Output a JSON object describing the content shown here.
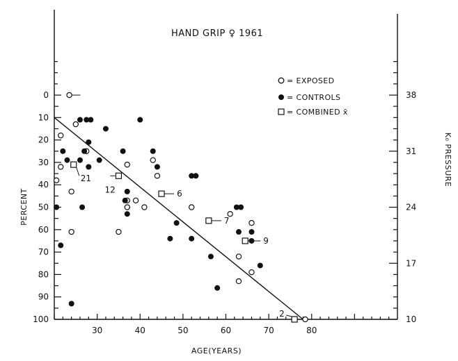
{
  "chart_data": {
    "type": "scatter",
    "title": "HAND GRIP ♀ 1961",
    "xlabel": "AGE(YEARS)",
    "ylabel": "PERCENT",
    "ylabel_right": "K₀ PRESSURE",
    "xlim": [
      20,
      100
    ],
    "ylim": [
      0,
      100
    ],
    "y_inverted": true,
    "x_ticks": [
      30,
      40,
      50,
      60,
      70,
      80
    ],
    "y_ticks": [
      0,
      10,
      20,
      30,
      40,
      50,
      60,
      70,
      80,
      90,
      100
    ],
    "right_ticks": [
      {
        "value": 38,
        "at": 0
      },
      {
        "value": 31,
        "at": 25
      },
      {
        "value": 24,
        "at": 50
      },
      {
        "value": 17,
        "at": 75
      },
      {
        "value": 10,
        "at": 100
      }
    ],
    "grid": false,
    "legend_position": "top-right",
    "series": [
      {
        "name": "EXPOSED",
        "marker": "open-circle",
        "points": [
          [
            23.5,
            0
          ],
          [
            21.5,
            18
          ],
          [
            21.5,
            32
          ],
          [
            20.5,
            38
          ],
          [
            24,
            43
          ],
          [
            24,
            61
          ],
          [
            25,
            13
          ],
          [
            27.5,
            25
          ],
          [
            37,
            31
          ],
          [
            37,
            47
          ],
          [
            37,
            50
          ],
          [
            39,
            47
          ],
          [
            41,
            50
          ],
          [
            43,
            29
          ],
          [
            44,
            36
          ],
          [
            35,
            61
          ],
          [
            52,
            50
          ],
          [
            61,
            53
          ],
          [
            63,
            72
          ],
          [
            63,
            83
          ],
          [
            66,
            57
          ],
          [
            66,
            79
          ],
          [
            78.5,
            100
          ]
        ]
      },
      {
        "name": "CONTROLS",
        "marker": "filled-circle",
        "points": [
          [
            20.5,
            50
          ],
          [
            22,
            25
          ],
          [
            21.5,
            67
          ],
          [
            23,
            29
          ],
          [
            24,
            93
          ],
          [
            26,
            11
          ],
          [
            26,
            29
          ],
          [
            26.5,
            50
          ],
          [
            27,
            25
          ],
          [
            27.5,
            11
          ],
          [
            28,
            21
          ],
          [
            28,
            32
          ],
          [
            28.5,
            11
          ],
          [
            30.5,
            29
          ],
          [
            32,
            15
          ],
          [
            36,
            25
          ],
          [
            36.5,
            47
          ],
          [
            37,
            43
          ],
          [
            37,
            53
          ],
          [
            40,
            11
          ],
          [
            43,
            25
          ],
          [
            44,
            32
          ],
          [
            47,
            64
          ],
          [
            48.5,
            57
          ],
          [
            52,
            36
          ],
          [
            53,
            36
          ],
          [
            52,
            64
          ],
          [
            56.5,
            72
          ],
          [
            58,
            86
          ],
          [
            62.5,
            50
          ],
          [
            63.5,
            50
          ],
          [
            63,
            61
          ],
          [
            66,
            61
          ],
          [
            66,
            65
          ],
          [
            68,
            76
          ]
        ]
      },
      {
        "name": "COMBINED x̄",
        "marker": "open-square",
        "points": [
          [
            24.5,
            31
          ],
          [
            35,
            36
          ],
          [
            45,
            44
          ],
          [
            56,
            56
          ],
          [
            64.5,
            65
          ],
          [
            76,
            100
          ]
        ],
        "labels": [
          "21",
          "12",
          "6",
          "7",
          "9",
          "2"
        ]
      }
    ],
    "regression_line": [
      [
        20,
        10
      ],
      [
        78,
        100
      ]
    ],
    "annotation_extra": "0"
  }
}
